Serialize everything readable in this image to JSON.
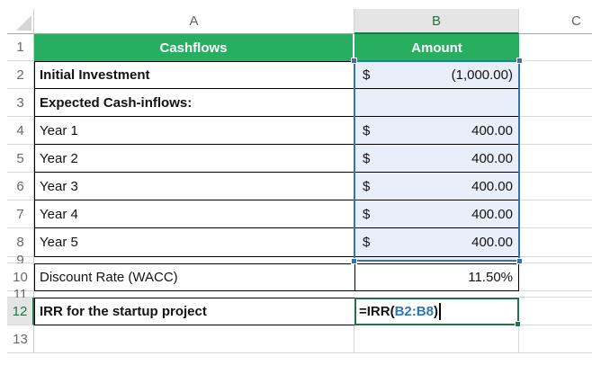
{
  "column_headers": {
    "a": "A",
    "b": "B",
    "c": "C"
  },
  "row_numbers": {
    "r1": "1",
    "r2": "2",
    "r3": "3",
    "r4": "4",
    "r5": "5",
    "r6": "6",
    "r7": "7",
    "r8": "8",
    "r9": "9",
    "r10": "10",
    "r11": "11",
    "r12": "12",
    "r13": "13"
  },
  "sheet": {
    "title_row": {
      "cashflows": "Cashflows",
      "amount": "Amount"
    },
    "rows": [
      {
        "row": "2",
        "label": "Initial Investment",
        "currency": "$",
        "amount": "(1,000.00)"
      },
      {
        "row": "3",
        "label": "Expected Cash-inflows:",
        "currency": "",
        "amount": ""
      },
      {
        "row": "4",
        "label": "Year 1",
        "currency": "$",
        "amount": "400.00"
      },
      {
        "row": "5",
        "label": "Year 2",
        "currency": "$",
        "amount": "400.00"
      },
      {
        "row": "6",
        "label": "Year 3",
        "currency": "$",
        "amount": "400.00"
      },
      {
        "row": "7",
        "label": "Year 4",
        "currency": "$",
        "amount": "400.00"
      },
      {
        "row": "8",
        "label": "Year 5",
        "currency": "$",
        "amount": "400.00"
      }
    ],
    "discount_row": {
      "label": "Discount Rate (WACC)",
      "value": "11.50%"
    },
    "irr_row": {
      "label": "IRR for the startup project",
      "formula_prefix": "=IRR(",
      "formula_range": "B2:B8",
      "formula_suffix": ")"
    }
  },
  "selection": {
    "highlighted_range": "B2:B8",
    "editing_cell": "B12"
  },
  "colors": {
    "header_green": "#28ae60",
    "active_green": "#217346",
    "selection_border_blue": "#2e75b6",
    "selection_fill": "#e9eff8",
    "formula_ref_blue": "#2e75b6",
    "gridline": "#d9d9d9",
    "table_border": "#000000",
    "selected_header_fill": "#e5e5e5"
  }
}
